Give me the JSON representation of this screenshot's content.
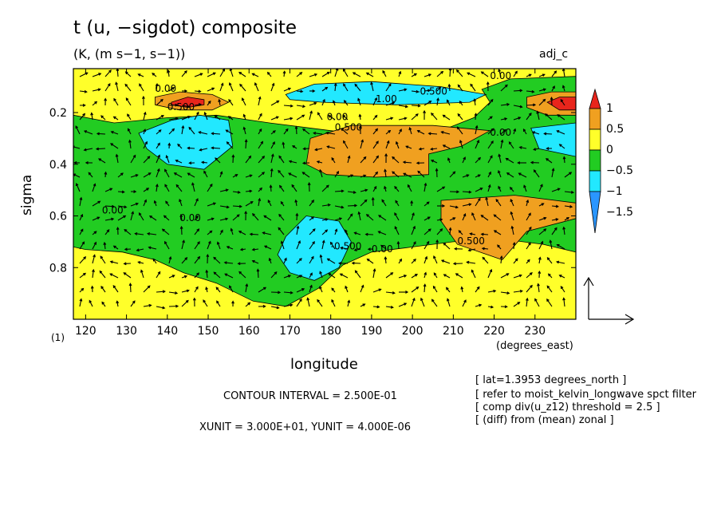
{
  "header": {
    "title": "t (u, −sigdot) composite",
    "units": "(K, (m s−1, s−1))",
    "tag": "adj_c"
  },
  "chart_data": {
    "type": "heatmap",
    "title": "t (u, −sigdot) composite",
    "xlabel": "longitude",
    "ylabel": "sigma",
    "x_units_label": "(degrees_east)",
    "index_label": "(1)",
    "xlim": [
      117,
      240
    ],
    "ylim": [
      1.0,
      0.03
    ],
    "xticks": [
      120,
      130,
      140,
      150,
      160,
      170,
      180,
      190,
      200,
      210,
      220,
      230
    ],
    "yticks": [
      0.2,
      0.4,
      0.6,
      0.8
    ],
    "colorbar": {
      "labels": [
        "1",
        "0.5",
        "0",
        "−0.5",
        "−1",
        "−1.5"
      ],
      "colors": [
        "#e8251c",
        "#f0a020",
        "#ffff2a",
        "#22cc22",
        "#22e8ff",
        "#2a96ff"
      ]
    },
    "regions": [
      {
        "level": 0,
        "points": [
          [
            117,
            0.03
          ],
          [
            240,
            0.03
          ],
          [
            240,
            1.0
          ],
          [
            117,
            1.0
          ]
        ]
      },
      {
        "level": -0.5,
        "points": [
          [
            117,
            0.21
          ],
          [
            127,
            0.24
          ],
          [
            140,
            0.22
          ],
          [
            152,
            0.21
          ],
          [
            165,
            0.24
          ],
          [
            190,
            0.29
          ],
          [
            207,
            0.27
          ],
          [
            215,
            0.22
          ],
          [
            219,
            0.16
          ],
          [
            217,
            0.11
          ],
          [
            224,
            0.07
          ],
          [
            240,
            0.06
          ],
          [
            240,
            0.74
          ],
          [
            232,
            0.71
          ],
          [
            222,
            0.69
          ],
          [
            210,
            0.7
          ],
          [
            200,
            0.72
          ],
          [
            190,
            0.74
          ],
          [
            183,
            0.79
          ],
          [
            177,
            0.88
          ],
          [
            169,
            0.95
          ],
          [
            161,
            0.93
          ],
          [
            152,
            0.86
          ],
          [
            144,
            0.82
          ],
          [
            137,
            0.77
          ],
          [
            129,
            0.74
          ],
          [
            120,
            0.73
          ],
          [
            117,
            0.72
          ]
        ]
      },
      {
        "level": -1,
        "points": [
          [
            133,
            0.28
          ],
          [
            141,
            0.23
          ],
          [
            148,
            0.21
          ],
          [
            155,
            0.23
          ],
          [
            156,
            0.33
          ],
          [
            149,
            0.42
          ],
          [
            140,
            0.4
          ],
          [
            135,
            0.34
          ]
        ]
      },
      {
        "level": -1,
        "points": [
          [
            169,
            0.68
          ],
          [
            174,
            0.6
          ],
          [
            182,
            0.62
          ],
          [
            185,
            0.7
          ],
          [
            182,
            0.8
          ],
          [
            176,
            0.85
          ],
          [
            170,
            0.82
          ],
          [
            167,
            0.75
          ]
        ]
      },
      {
        "level": -1,
        "points": [
          [
            169,
            0.13
          ],
          [
            176,
            0.09
          ],
          [
            190,
            0.08
          ],
          [
            207,
            0.1
          ],
          [
            218,
            0.13
          ],
          [
            214,
            0.16
          ],
          [
            196,
            0.17
          ],
          [
            178,
            0.16
          ],
          [
            170,
            0.15
          ]
        ]
      },
      {
        "level": -1,
        "points": [
          [
            229,
            0.26
          ],
          [
            240,
            0.24
          ],
          [
            240,
            0.37
          ],
          [
            231,
            0.34
          ]
        ]
      },
      {
        "level": 0.5,
        "points": [
          [
            175,
            0.3
          ],
          [
            185,
            0.25
          ],
          [
            205,
            0.25
          ],
          [
            219,
            0.27
          ],
          [
            212,
            0.33
          ],
          [
            204,
            0.36
          ],
          [
            204,
            0.44
          ],
          [
            191,
            0.45
          ],
          [
            179,
            0.44
          ],
          [
            174,
            0.4
          ]
        ]
      },
      {
        "level": 0.5,
        "points": [
          [
            207,
            0.54
          ],
          [
            225,
            0.52
          ],
          [
            240,
            0.55
          ],
          [
            240,
            0.61
          ],
          [
            228,
            0.66
          ],
          [
            222,
            0.77
          ],
          [
            211,
            0.71
          ],
          [
            207,
            0.62
          ]
        ]
      },
      {
        "level": 0.5,
        "points": [
          [
            137,
            0.14
          ],
          [
            143,
            0.12
          ],
          [
            151,
            0.13
          ],
          [
            155,
            0.16
          ],
          [
            151,
            0.19
          ],
          [
            143,
            0.19
          ],
          [
            137,
            0.17
          ]
        ]
      },
      {
        "level": 0.5,
        "points": [
          [
            228,
            0.14
          ],
          [
            234,
            0.12
          ],
          [
            240,
            0.12
          ],
          [
            240,
            0.21
          ],
          [
            233,
            0.21
          ],
          [
            228,
            0.18
          ]
        ]
      },
      {
        "level": 1,
        "points": [
          [
            141,
            0.16
          ],
          [
            145,
            0.14
          ],
          [
            149,
            0.15
          ],
          [
            149,
            0.17
          ],
          [
            145,
            0.18
          ],
          [
            141,
            0.17
          ]
        ]
      },
      {
        "level": 1,
        "points": [
          [
            233,
            0.16
          ],
          [
            236,
            0.14
          ],
          [
            240,
            0.14
          ],
          [
            240,
            0.19
          ],
          [
            236,
            0.19
          ]
        ]
      }
    ],
    "contour_labels": [
      {
        "text": "0.00",
        "x": 137,
        "y": 0.12
      },
      {
        "text": "0.500",
        "x": 140,
        "y": 0.19
      },
      {
        "text": "0.00",
        "x": 219,
        "y": 0.07
      },
      {
        "text": "-0.500",
        "x": 201,
        "y": 0.13
      },
      {
        "text": "1.00",
        "x": 191,
        "y": 0.16
      },
      {
        "text": "0.00",
        "x": 179,
        "y": 0.23
      },
      {
        "text": "0.500",
        "x": 181,
        "y": 0.27
      },
      {
        "text": "0.00",
        "x": 219,
        "y": 0.29
      },
      {
        "text": "0.00",
        "x": 124,
        "y": 0.59
      },
      {
        "text": "0.00",
        "x": 143,
        "y": 0.62
      },
      {
        "text": "0.00",
        "x": 190,
        "y": 0.74
      },
      {
        "text": "0.500",
        "x": 211,
        "y": 0.71
      },
      {
        "text": "-0.500",
        "x": 180,
        "y": 0.73
      }
    ],
    "reference_vector": {
      "xunit": "3.000E+01",
      "yunit": "4.000E-06"
    }
  },
  "footer": {
    "contour_interval": "CONTOUR INTERVAL = 2.500E-01",
    "vector_units": "XUNIT = 3.000E+01, YUNIT = 4.000E-06",
    "notes": [
      "[ lat=1.3953 degrees_north ]",
      "[ refer to moist_kelvin_longwave spct filter",
      "[ comp div(u_z12) threshold = 2.5 ]",
      "[ (diff) from (mean) zonal ]"
    ]
  }
}
